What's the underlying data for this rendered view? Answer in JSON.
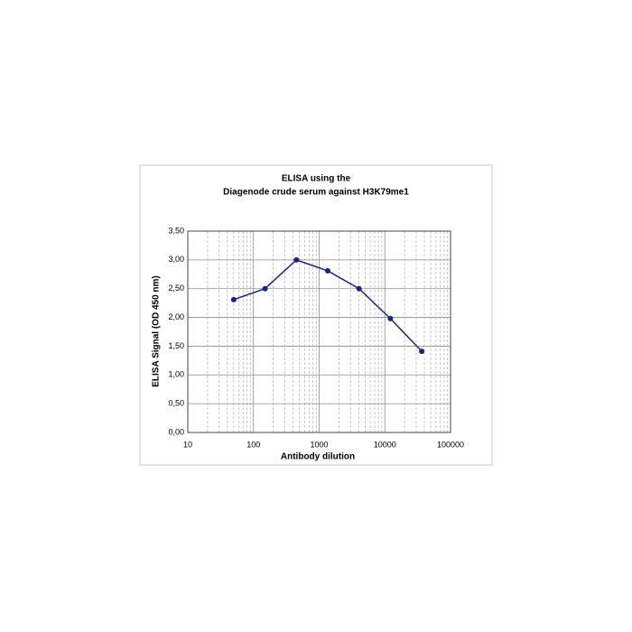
{
  "chart_data": {
    "type": "line",
    "title": [
      "ELISA using the",
      "Diagenode crude serum against H3K79me1"
    ],
    "x_label": "Antibody dilution",
    "y_label": "ELISA Signal (OD 450 nm)",
    "x": [
      50,
      150,
      450,
      1350,
      4050,
      12150,
      36450
    ],
    "series": [
      {
        "name": "H3K79me1",
        "color": "#1c2573",
        "values": [
          2.31,
          2.5,
          3.0,
          2.81,
          2.5,
          1.98,
          1.41
        ]
      }
    ],
    "xlim": [
      10,
      100000
    ],
    "xticks": [
      10,
      100,
      1000,
      10000,
      100000
    ],
    "xlog": true,
    "ylim": [
      0,
      3.5
    ],
    "yticks": [
      {
        "value": 0,
        "label": "0,00"
      },
      {
        "value": 0.5,
        "label": "0,50"
      },
      {
        "value": 1,
        "label": "1,00"
      },
      {
        "value": 1.5,
        "label": "1,50"
      },
      {
        "value": 2,
        "label": "2,00"
      },
      {
        "value": 2.5,
        "label": "2,50"
      },
      {
        "value": 3,
        "label": "3,00"
      },
      {
        "value": 3.5,
        "label": "3,50"
      }
    ],
    "grid": true
  }
}
